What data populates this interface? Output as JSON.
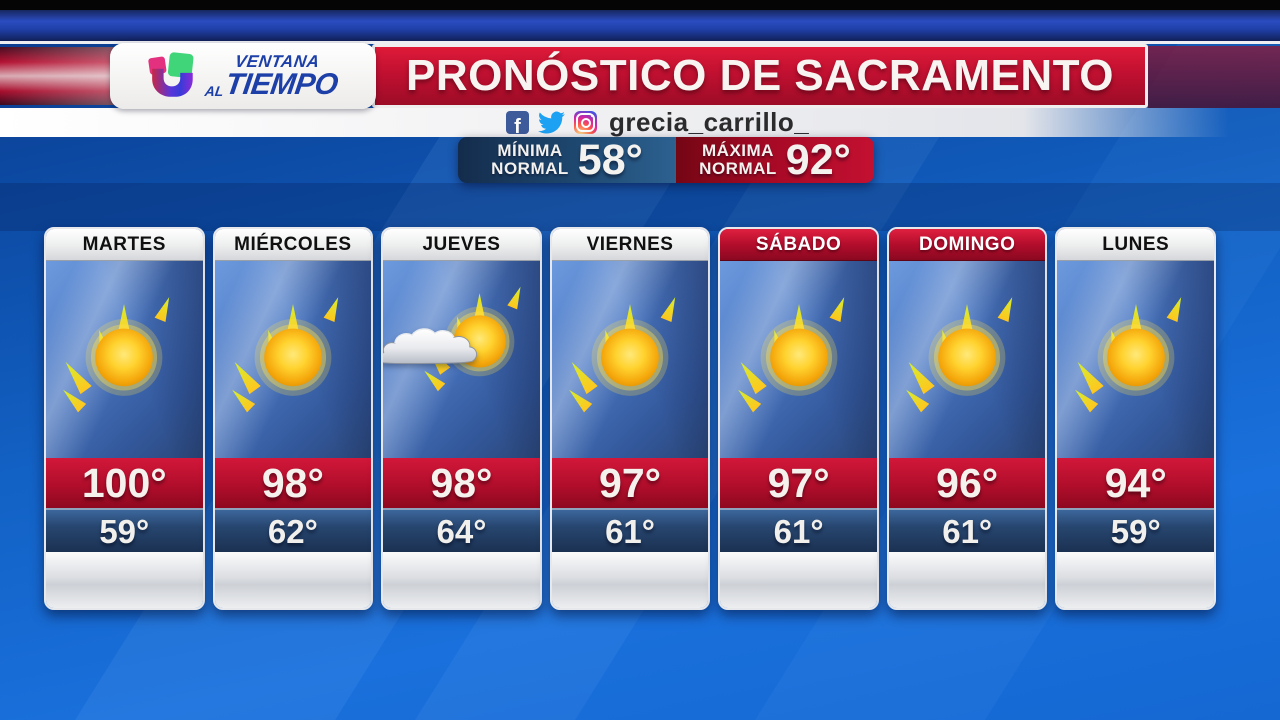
{
  "brand": {
    "wordmark_line1": "VENTANA",
    "wordmark_line2_small": "AL",
    "wordmark_line2_big": "TIEMPO"
  },
  "header": {
    "title": "PRONÓSTICO DE SACRAMENTO"
  },
  "social": {
    "facebook_letter": "f",
    "handle": "grecia_carrillo_",
    "icons": [
      "facebook-icon",
      "twitter-icon",
      "instagram-icon"
    ]
  },
  "normals": {
    "min": {
      "label_line1": "MÍNIMA",
      "label_line2": "NORMAL",
      "value": "58°"
    },
    "max": {
      "label_line1": "MÁXIMA",
      "label_line2": "NORMAL",
      "value": "92°"
    }
  },
  "forecast_days": [
    {
      "name": "MARTES",
      "high": "100°",
      "low": "59°",
      "condition": "sunny",
      "weekend": false
    },
    {
      "name": "MIÉRCOLES",
      "high": "98°",
      "low": "62°",
      "condition": "sunny",
      "weekend": false
    },
    {
      "name": "JUEVES",
      "high": "98°",
      "low": "64°",
      "condition": "partly-cloudy",
      "weekend": false
    },
    {
      "name": "VIERNES",
      "high": "97°",
      "low": "61°",
      "condition": "sunny",
      "weekend": false
    },
    {
      "name": "SÁBADO",
      "high": "97°",
      "low": "61°",
      "condition": "sunny",
      "weekend": true
    },
    {
      "name": "DOMINGO",
      "high": "96°",
      "low": "61°",
      "condition": "sunny",
      "weekend": true
    },
    {
      "name": "LUNES",
      "high": "94°",
      "low": "59°",
      "condition": "sunny",
      "weekend": false
    }
  ],
  "colors": {
    "banner_red": "#c11031",
    "card_high_red": "#b10e2b",
    "card_low_navy": "#27466f",
    "background_blue": "#1261c4",
    "normal_min_blue": "#1e4870",
    "normal_max_red": "#a80a26"
  }
}
